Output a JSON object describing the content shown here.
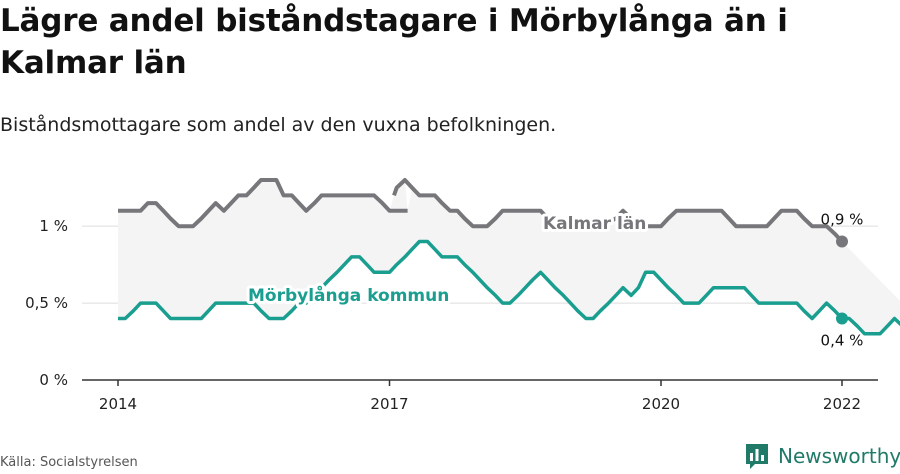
{
  "header": {
    "title": "Lägre andel biståndstagare i Mörbylånga än i Kalmar län",
    "subtitle": "Biståndsmottagare som andel av den vuxna befolkningen."
  },
  "footer": {
    "source": "Källa: Socialstyrelsen",
    "brand": "Newsworthy"
  },
  "colors": {
    "kalmar": "#77767b",
    "morbylanga": "#1a9e8f",
    "band": "#f4f4f4",
    "grid": "#dddddd",
    "axis": "#333333"
  },
  "chart_data": {
    "type": "line",
    "title": "Lägre andel biståndstagare i Mörbylånga än i Kalmar län",
    "subtitle": "Biståndsmottagare som andel av den vuxna befolkningen.",
    "xlabel": "",
    "ylabel": "",
    "xlim": [
      2014,
      2022
    ],
    "ylim": [
      0,
      1.3
    ],
    "x_ticks": [
      2014,
      2017,
      2020,
      2022
    ],
    "x_tick_labels": [
      "2014",
      "2017",
      "2020",
      "2022"
    ],
    "y_ticks": [
      0,
      0.5,
      1
    ],
    "y_tick_labels": [
      "0 %",
      "0,5 %",
      "1 %"
    ],
    "grid": "horizontal",
    "series": [
      {
        "name": "Kalmar län",
        "color": "#77767b",
        "end_label": "0,9 %",
        "values": [
          [
            2014.0,
            1.1
          ],
          [
            2014.25,
            1.1
          ],
          [
            2014.33,
            1.15
          ],
          [
            2014.42,
            1.15
          ],
          [
            2014.5,
            1.1
          ],
          [
            2014.58,
            1.05
          ],
          [
            2014.67,
            1.0
          ],
          [
            2014.83,
            1.0
          ],
          [
            2014.92,
            1.05
          ],
          [
            2015.0,
            1.1
          ],
          [
            2015.08,
            1.15
          ],
          [
            2015.17,
            1.1
          ],
          [
            2015.25,
            1.15
          ],
          [
            2015.33,
            1.2
          ],
          [
            2015.42,
            1.2
          ],
          [
            2015.5,
            1.25
          ],
          [
            2015.58,
            1.3
          ],
          [
            2015.75,
            1.3
          ],
          [
            2015.83,
            1.2
          ],
          [
            2015.92,
            1.2
          ],
          [
            2016.0,
            1.15
          ],
          [
            2016.08,
            1.1
          ],
          [
            2016.17,
            1.15
          ],
          [
            2016.25,
            1.2
          ],
          [
            2016.58,
            1.2
          ],
          [
            2016.83,
            1.2
          ],
          [
            2016.92,
            1.15
          ],
          [
            2017.0,
            1.1
          ],
          [
            2017.2,
            1.1
          ],
          [
            2017.05,
            1.2
          ],
          [
            2017.08,
            1.25
          ],
          [
            2017.17,
            1.3
          ],
          [
            2017.25,
            1.25
          ],
          [
            2017.33,
            1.2
          ],
          [
            2017.5,
            1.2
          ],
          [
            2017.58,
            1.15
          ],
          [
            2017.67,
            1.1
          ],
          [
            2017.75,
            1.1
          ],
          [
            2017.83,
            1.05
          ],
          [
            2017.92,
            1.0
          ],
          [
            2018.0,
            1.0
          ],
          [
            2018.08,
            1.0
          ],
          [
            2018.17,
            1.05
          ],
          [
            2018.25,
            1.1
          ],
          [
            2018.33,
            1.1
          ],
          [
            2018.5,
            1.1
          ],
          [
            2018.67,
            1.1
          ],
          [
            2018.75,
            1.05
          ],
          [
            2018.83,
            1.0
          ],
          [
            2019.0,
            1.0
          ],
          [
            2019.33,
            1.0
          ],
          [
            2019.5,
            1.05
          ],
          [
            2019.58,
            1.1
          ],
          [
            2019.67,
            1.05
          ],
          [
            2019.75,
            1.0
          ],
          [
            2020.0,
            1.0
          ],
          [
            2020.08,
            1.05
          ],
          [
            2020.17,
            1.1
          ],
          [
            2020.5,
            1.1
          ],
          [
            2020.67,
            1.1
          ],
          [
            2020.75,
            1.05
          ],
          [
            2020.83,
            1.0
          ],
          [
            2021.0,
            1.0
          ],
          [
            2021.17,
            1.0
          ],
          [
            2021.25,
            1.05
          ],
          [
            2021.33,
            1.1
          ],
          [
            2021.5,
            1.1
          ],
          [
            2021.58,
            1.05
          ],
          [
            2021.67,
            1.0
          ],
          [
            2021.83,
            1.0
          ],
          [
            2021.92,
            0.95
          ],
          [
            2022.0,
            0.9
          ]
        ]
      },
      {
        "name": "Mörbylånga kommun",
        "color": "#1a9e8f",
        "end_label": "0,4 %",
        "values": [
          [
            2014.0,
            0.4
          ],
          [
            2014.08,
            0.4
          ],
          [
            2014.17,
            0.45
          ],
          [
            2014.25,
            0.5
          ],
          [
            2014.42,
            0.5
          ],
          [
            2014.5,
            0.45
          ],
          [
            2014.58,
            0.4
          ],
          [
            2014.75,
            0.4
          ],
          [
            2014.92,
            0.4
          ],
          [
            2015.0,
            0.45
          ],
          [
            2015.08,
            0.5
          ],
          [
            2015.25,
            0.5
          ],
          [
            2015.5,
            0.5
          ],
          [
            2015.58,
            0.45
          ],
          [
            2015.67,
            0.4
          ],
          [
            2015.83,
            0.4
          ],
          [
            2015.92,
            0.45
          ],
          [
            2016.0,
            0.5
          ],
          [
            2016.08,
            0.5
          ],
          [
            2016.17,
            0.55
          ],
          [
            2016.25,
            0.6
          ],
          [
            2016.33,
            0.65
          ],
          [
            2016.42,
            0.7
          ],
          [
            2016.5,
            0.75
          ],
          [
            2016.58,
            0.8
          ],
          [
            2016.67,
            0.8
          ],
          [
            2016.75,
            0.75
          ],
          [
            2016.83,
            0.7
          ],
          [
            2016.92,
            0.7
          ],
          [
            2017.0,
            0.7
          ],
          [
            2017.08,
            0.75
          ],
          [
            2017.17,
            0.8
          ],
          [
            2017.25,
            0.85
          ],
          [
            2017.33,
            0.9
          ],
          [
            2017.42,
            0.9
          ],
          [
            2017.5,
            0.85
          ],
          [
            2017.58,
            0.8
          ],
          [
            2017.75,
            0.8
          ],
          [
            2017.83,
            0.75
          ],
          [
            2017.92,
            0.7
          ],
          [
            2018.0,
            0.65
          ],
          [
            2018.08,
            0.6
          ],
          [
            2018.17,
            0.55
          ],
          [
            2018.25,
            0.5
          ],
          [
            2018.33,
            0.5
          ],
          [
            2018.42,
            0.55
          ],
          [
            2018.5,
            0.6
          ],
          [
            2018.58,
            0.65
          ],
          [
            2018.67,
            0.7
          ],
          [
            2018.75,
            0.65
          ],
          [
            2018.83,
            0.6
          ],
          [
            2018.92,
            0.55
          ],
          [
            2019.0,
            0.5
          ],
          [
            2019.08,
            0.45
          ],
          [
            2019.17,
            0.4
          ],
          [
            2019.25,
            0.4
          ],
          [
            2019.33,
            0.45
          ],
          [
            2019.42,
            0.5
          ],
          [
            2019.5,
            0.55
          ],
          [
            2019.58,
            0.6
          ],
          [
            2019.67,
            0.55
          ],
          [
            2019.75,
            0.6
          ],
          [
            2019.83,
            0.7
          ],
          [
            2019.92,
            0.7
          ],
          [
            2020.0,
            0.65
          ],
          [
            2020.08,
            0.6
          ],
          [
            2020.17,
            0.55
          ],
          [
            2020.25,
            0.5
          ],
          [
            2020.42,
            0.5
          ],
          [
            2020.5,
            0.55
          ],
          [
            2020.58,
            0.6
          ],
          [
            2020.67,
            0.6
          ],
          [
            2020.92,
            0.6
          ],
          [
            2021.0,
            0.55
          ],
          [
            2021.08,
            0.5
          ],
          [
            2021.25,
            0.5
          ],
          [
            2021.5,
            0.5
          ],
          [
            2021.58,
            0.45
          ],
          [
            2021.67,
            0.4
          ],
          [
            2021.75,
            0.45
          ],
          [
            2021.83,
            0.5
          ],
          [
            2021.92,
            0.45
          ],
          [
            2022.0,
            0.4
          ],
          [
            2022.08,
            0.4
          ],
          [
            2022.17,
            0.35
          ],
          [
            2022.25,
            0.3
          ],
          [
            2022.42,
            0.3
          ],
          [
            2022.5,
            0.35
          ],
          [
            2022.58,
            0.4
          ],
          [
            2022.67,
            0.35
          ],
          [
            2022.75,
            0.4
          ],
          [
            2022.83,
            0.4
          ]
        ]
      }
    ]
  }
}
